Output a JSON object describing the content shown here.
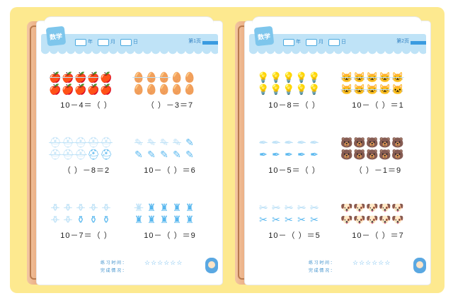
{
  "left_page": {
    "header": {
      "logo": "数学",
      "labels": [
        "年",
        "月",
        "日"
      ],
      "page_label": "第1页"
    },
    "exercises": [
      {
        "icon": "🍎",
        "count": 10,
        "crossed": 4,
        "equation": "10－4＝（   ）"
      },
      {
        "icon": "🥚",
        "count": 10,
        "crossed": 3,
        "equation": "（   ）－3＝7"
      },
      {
        "icon": "⛑",
        "count": 10,
        "crossed": 8,
        "equation": "（   ）－8＝2"
      },
      {
        "icon": "✎",
        "count": 10,
        "crossed": 4,
        "equation": "10－（   ）＝6"
      },
      {
        "icon": "⚱",
        "count": 10,
        "crossed": 7,
        "equation": "10－7＝（   ）"
      },
      {
        "icon": "♜",
        "count": 10,
        "crossed": 1,
        "equation": "10－（   ）＝9"
      }
    ],
    "footer": {
      "row1": "练 习 时 间 ：",
      "row2": "完 成 情 况 ：",
      "stars": "☆☆☆☆☆☆"
    },
    "bottom_number": "1"
  },
  "right_page": {
    "header": {
      "logo": "数学",
      "labels": [
        "年",
        "月",
        "日"
      ],
      "page_label": "第2页"
    },
    "exercises": [
      {
        "icon": "💡",
        "count": 10,
        "crossed": 0,
        "equation": "10－8＝（   ）"
      },
      {
        "icon": "🐱",
        "count": 10,
        "crossed": 9,
        "equation": "10－（   ）＝1"
      },
      {
        "icon": "✒",
        "count": 10,
        "crossed": 5,
        "equation": "10－5＝（   ）"
      },
      {
        "icon": "🐻",
        "count": 10,
        "crossed": 0,
        "equation": "（   ）－1＝9"
      },
      {
        "icon": "✂",
        "count": 10,
        "crossed": 5,
        "equation": "10－（   ）＝5"
      },
      {
        "icon": "🐶",
        "count": 10,
        "crossed": 0,
        "equation": "10－（   ）＝7"
      }
    ],
    "footer": {
      "row1": "练 习 时 间 ：",
      "row2": "完 成 情 况 ：",
      "stars": "☆☆☆☆☆☆"
    },
    "bottom_number": "2"
  },
  "colors": {
    "accent": "#5ab8ef",
    "background": "#fde98f",
    "header": "#bfe3f7"
  }
}
